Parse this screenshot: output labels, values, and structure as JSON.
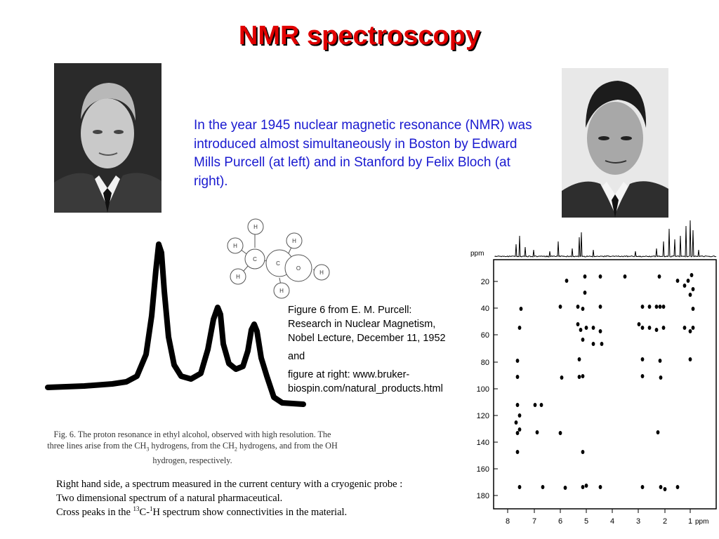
{
  "slide": {
    "title": "NMR spectroscopy",
    "intro": "In the year 1945 nuclear magnetic resonance (NMR) was introduced almost simultaneously in Boston by Edward Mills Purcell (at left) and in Stanford by Felix Bloch (at right).",
    "caption": {
      "line1": "Figure 6 from E. M. Purcell:",
      "line2": "Research in Nuclear Magnetism,",
      "line3": "Nobel Lecture, December 11, 1952",
      "and": "and",
      "line4": "figure at right: www.bruker-",
      "line5": "biospin.com/natural_products.html"
    },
    "fig6": {
      "line1": "Fig. 6. The proton resonance in ethyl alcohol, observed with high resolution. The",
      "line2a": "three lines arise from the CH",
      "sub1": "3",
      "line2b": " hydrogens, from the CH",
      "sub2": "2",
      "line2c": " hydrogens, and from the OH",
      "line3": "hydrogen,   respectively."
    },
    "bottom": {
      "line1": "Right hand side, a spectrum measured in the current century with a cryogenic probe :",
      "line2": "Two dimensional spectrum of a natural pharmaceutical.",
      "line3a": "Cross peaks in the ",
      "sup1": "13",
      "line3b": "C-",
      "sup2": "1",
      "line3c": "H spectrum show connectivities in the material."
    }
  },
  "molecule": {
    "atoms": [
      "H",
      "H",
      "C",
      "C",
      "H",
      "O",
      "H",
      "H",
      "H"
    ]
  },
  "spectrum2d": {
    "y_axis_label": "ppm",
    "x_axis_label": "ppm",
    "y_ticks": [
      "20",
      "40",
      "60",
      "80",
      "100",
      "120",
      "140",
      "160",
      "180"
    ],
    "x_ticks": [
      "8",
      "7",
      "6",
      "5",
      "4",
      "3",
      "2",
      "1"
    ]
  }
}
